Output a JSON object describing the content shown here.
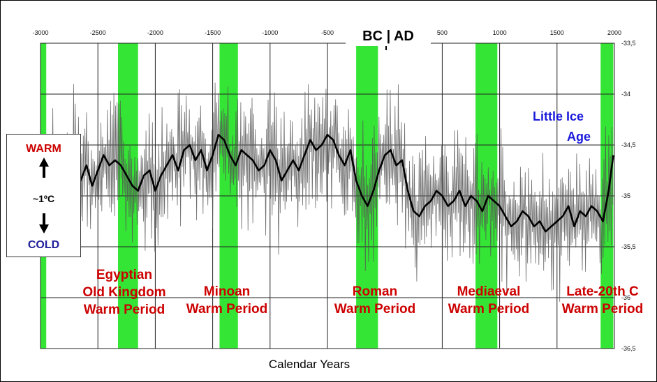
{
  "chart_data": {
    "type": "line",
    "xlabel": "Calendar Years",
    "era_label": "BC | AD",
    "x_ticks": [
      -3000,
      -2500,
      -2000,
      -1500,
      -1000,
      -500,
      500,
      1000,
      1500,
      2000
    ],
    "x_tick_labels": [
      "-3000",
      "-2500",
      "-2000",
      "-1500",
      "-1000",
      "-500",
      "500",
      "1000",
      "1500",
      "2000"
    ],
    "xlim": [
      -3000,
      2000
    ],
    "y_ticks": [
      -33.5,
      -34,
      -34.5,
      -35,
      -35.5,
      -36,
      -36.5
    ],
    "y_tick_labels": [
      "-33,5",
      "-34",
      "-34,5",
      "-35",
      "-35,5",
      "-36",
      "-36,5"
    ],
    "ylim": [
      -36.5,
      -33.5
    ],
    "grid": true,
    "series": [
      {
        "style": "smoothed",
        "color": "#000000",
        "x": [
          -2970,
          -2900,
          -2850,
          -2800,
          -2750,
          -2700,
          -2650,
          -2600,
          -2550,
          -2500,
          -2450,
          -2400,
          -2350,
          -2300,
          -2250,
          -2200,
          -2150,
          -2100,
          -2050,
          -2000,
          -1950,
          -1900,
          -1850,
          -1800,
          -1750,
          -1700,
          -1650,
          -1600,
          -1550,
          -1500,
          -1450,
          -1400,
          -1350,
          -1300,
          -1250,
          -1200,
          -1150,
          -1100,
          -1050,
          -1000,
          -950,
          -900,
          -850,
          -800,
          -750,
          -700,
          -650,
          -600,
          -550,
          -500,
          -450,
          -400,
          -350,
          -300,
          -250,
          -200,
          -150,
          -100,
          -50,
          0,
          50,
          100,
          150,
          200,
          250,
          300,
          350,
          400,
          450,
          500,
          550,
          600,
          650,
          700,
          750,
          800,
          850,
          900,
          950,
          1000,
          1050,
          1100,
          1150,
          1200,
          1250,
          1300,
          1350,
          1400,
          1450,
          1500,
          1550,
          1600,
          1650,
          1700,
          1750,
          1800,
          1850,
          1900,
          1950,
          1990
        ],
        "y": [
          -34.9,
          -34.95,
          -34.85,
          -35.0,
          -34.8,
          -34.6,
          -34.85,
          -34.7,
          -34.9,
          -34.75,
          -34.6,
          -34.7,
          -34.65,
          -34.7,
          -34.8,
          -34.9,
          -34.95,
          -34.8,
          -34.75,
          -34.95,
          -34.8,
          -34.7,
          -34.6,
          -34.75,
          -34.55,
          -34.5,
          -34.65,
          -34.55,
          -34.75,
          -34.6,
          -34.4,
          -34.45,
          -34.6,
          -34.7,
          -34.55,
          -34.6,
          -34.65,
          -34.75,
          -34.7,
          -34.55,
          -34.65,
          -34.85,
          -34.75,
          -34.65,
          -34.75,
          -34.6,
          -34.45,
          -34.55,
          -34.5,
          -34.4,
          -34.45,
          -34.6,
          -34.7,
          -34.55,
          -34.85,
          -35.0,
          -35.1,
          -34.95,
          -34.75,
          -34.6,
          -34.55,
          -34.7,
          -34.65,
          -34.95,
          -35.15,
          -35.2,
          -35.1,
          -35.05,
          -34.95,
          -35.0,
          -35.1,
          -35.05,
          -34.95,
          -35.1,
          -35.0,
          -35.05,
          -35.15,
          -35.0,
          -35.05,
          -35.1,
          -35.2,
          -35.3,
          -35.25,
          -35.15,
          -35.2,
          -35.3,
          -35.25,
          -35.35,
          -35.3,
          -35.25,
          -35.2,
          -35.1,
          -35.3,
          -35.15,
          -35.2,
          -35.1,
          -35.15,
          -35.25,
          -34.95,
          -34.6
        ]
      }
    ],
    "warm_periods": [
      {
        "label_lines": [
          "Egyptian",
          "Old Kingdom",
          "Warm Period"
        ],
        "start": -2325,
        "end": -2150
      },
      {
        "label_lines": [
          "Minoan",
          "Warm Period"
        ],
        "start": -1440,
        "end": -1280
      },
      {
        "label_lines": [
          "Roman",
          "Warm Period"
        ],
        "start": -250,
        "end": -60
      },
      {
        "label_lines": [
          "Mediaeval",
          "Warm Period"
        ],
        "start": 790,
        "end": 980
      },
      {
        "label_lines": [
          "Late-20th C",
          "Warm Period"
        ],
        "start": 1880,
        "end": 1990
      },
      {
        "label_lines": [],
        "start": -3000,
        "end": -2950
      }
    ],
    "annotation_lia": [
      "Little Ice",
      "Age"
    ],
    "scale": {
      "warm": "WARM",
      "cold": "COLD",
      "magnitude": "~1ºC"
    },
    "colors": {
      "band": "#35e535",
      "smoothed": "#000000",
      "raw": "#555555",
      "warm_text": "#cc0000",
      "lia_text": "#1a1adb",
      "cold_text": "#1f1f9a"
    }
  }
}
